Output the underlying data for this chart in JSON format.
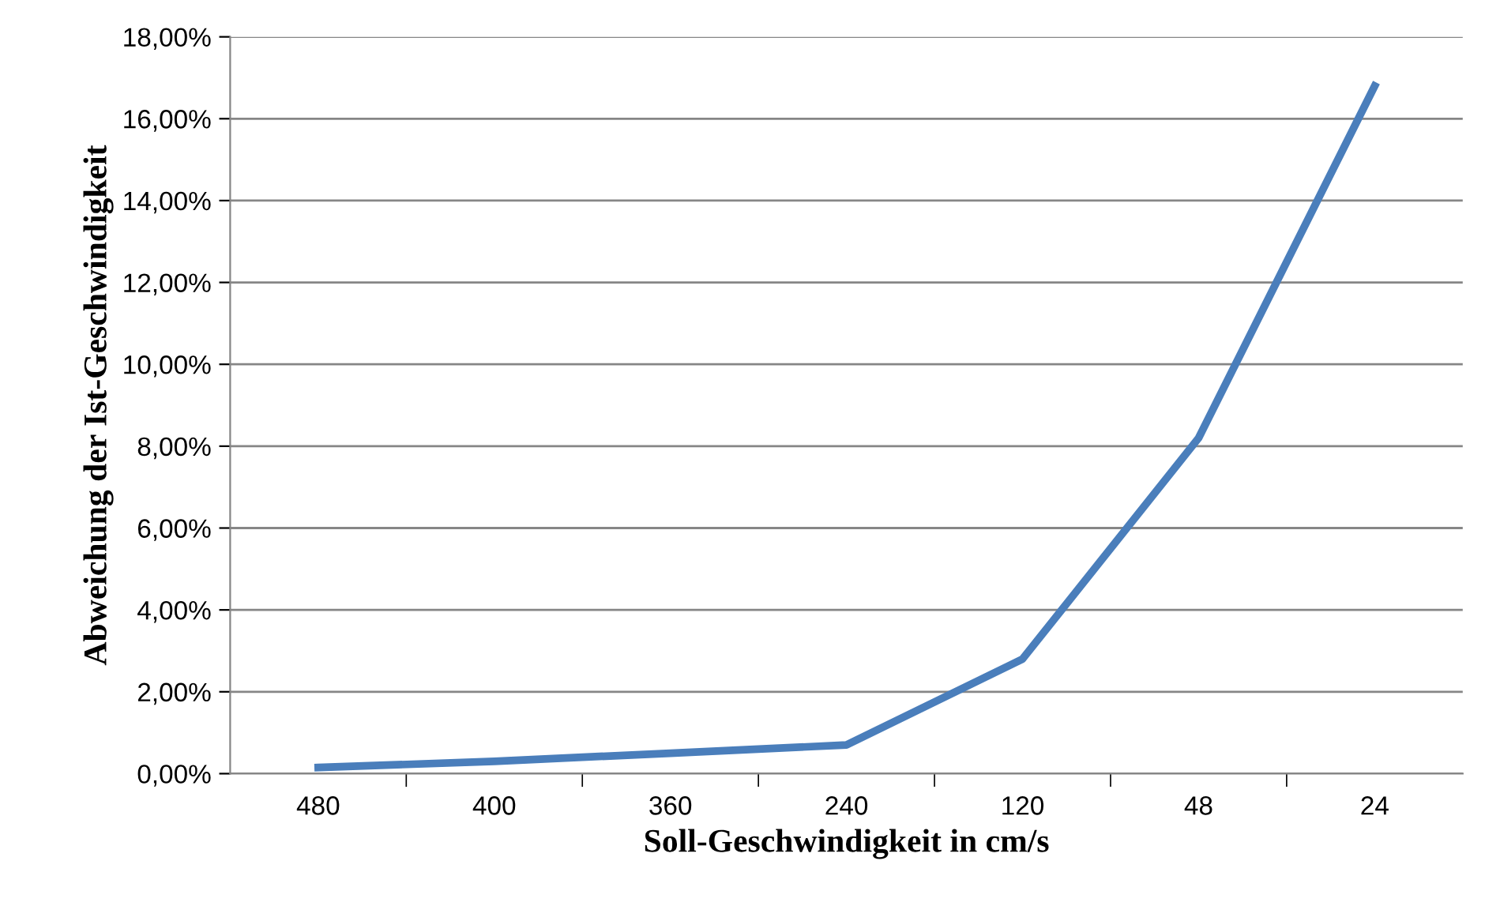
{
  "chart_data": {
    "type": "line",
    "xlabel": "Soll-Geschwindigkeit in cm/s",
    "ylabel": "Abweichung der Ist-Geschwindigkeit",
    "categories": [
      "480",
      "400",
      "360",
      "240",
      "120",
      "48",
      "24"
    ],
    "series": [
      {
        "color": "#4a7ebb",
        "values": [
          0.15,
          0.3,
          0.5,
          0.7,
          2.8,
          8.2,
          16.8
        ]
      }
    ],
    "ylim": [
      0,
      18
    ],
    "yticks": [
      {
        "value": 0,
        "label": "0,00%"
      },
      {
        "value": 2,
        "label": "2,00%"
      },
      {
        "value": 4,
        "label": "4,00%"
      },
      {
        "value": 6,
        "label": "6,00%"
      },
      {
        "value": 8,
        "label": "8,00%"
      },
      {
        "value": 10,
        "label": "10,00%"
      },
      {
        "value": 12,
        "label": "12,00%"
      },
      {
        "value": 14,
        "label": "14,00%"
      },
      {
        "value": 16,
        "label": "16,00%"
      },
      {
        "value": 18,
        "label": "18,00%"
      }
    ],
    "grid": "y",
    "legend": false,
    "marker": "none",
    "line_style": "solid"
  }
}
